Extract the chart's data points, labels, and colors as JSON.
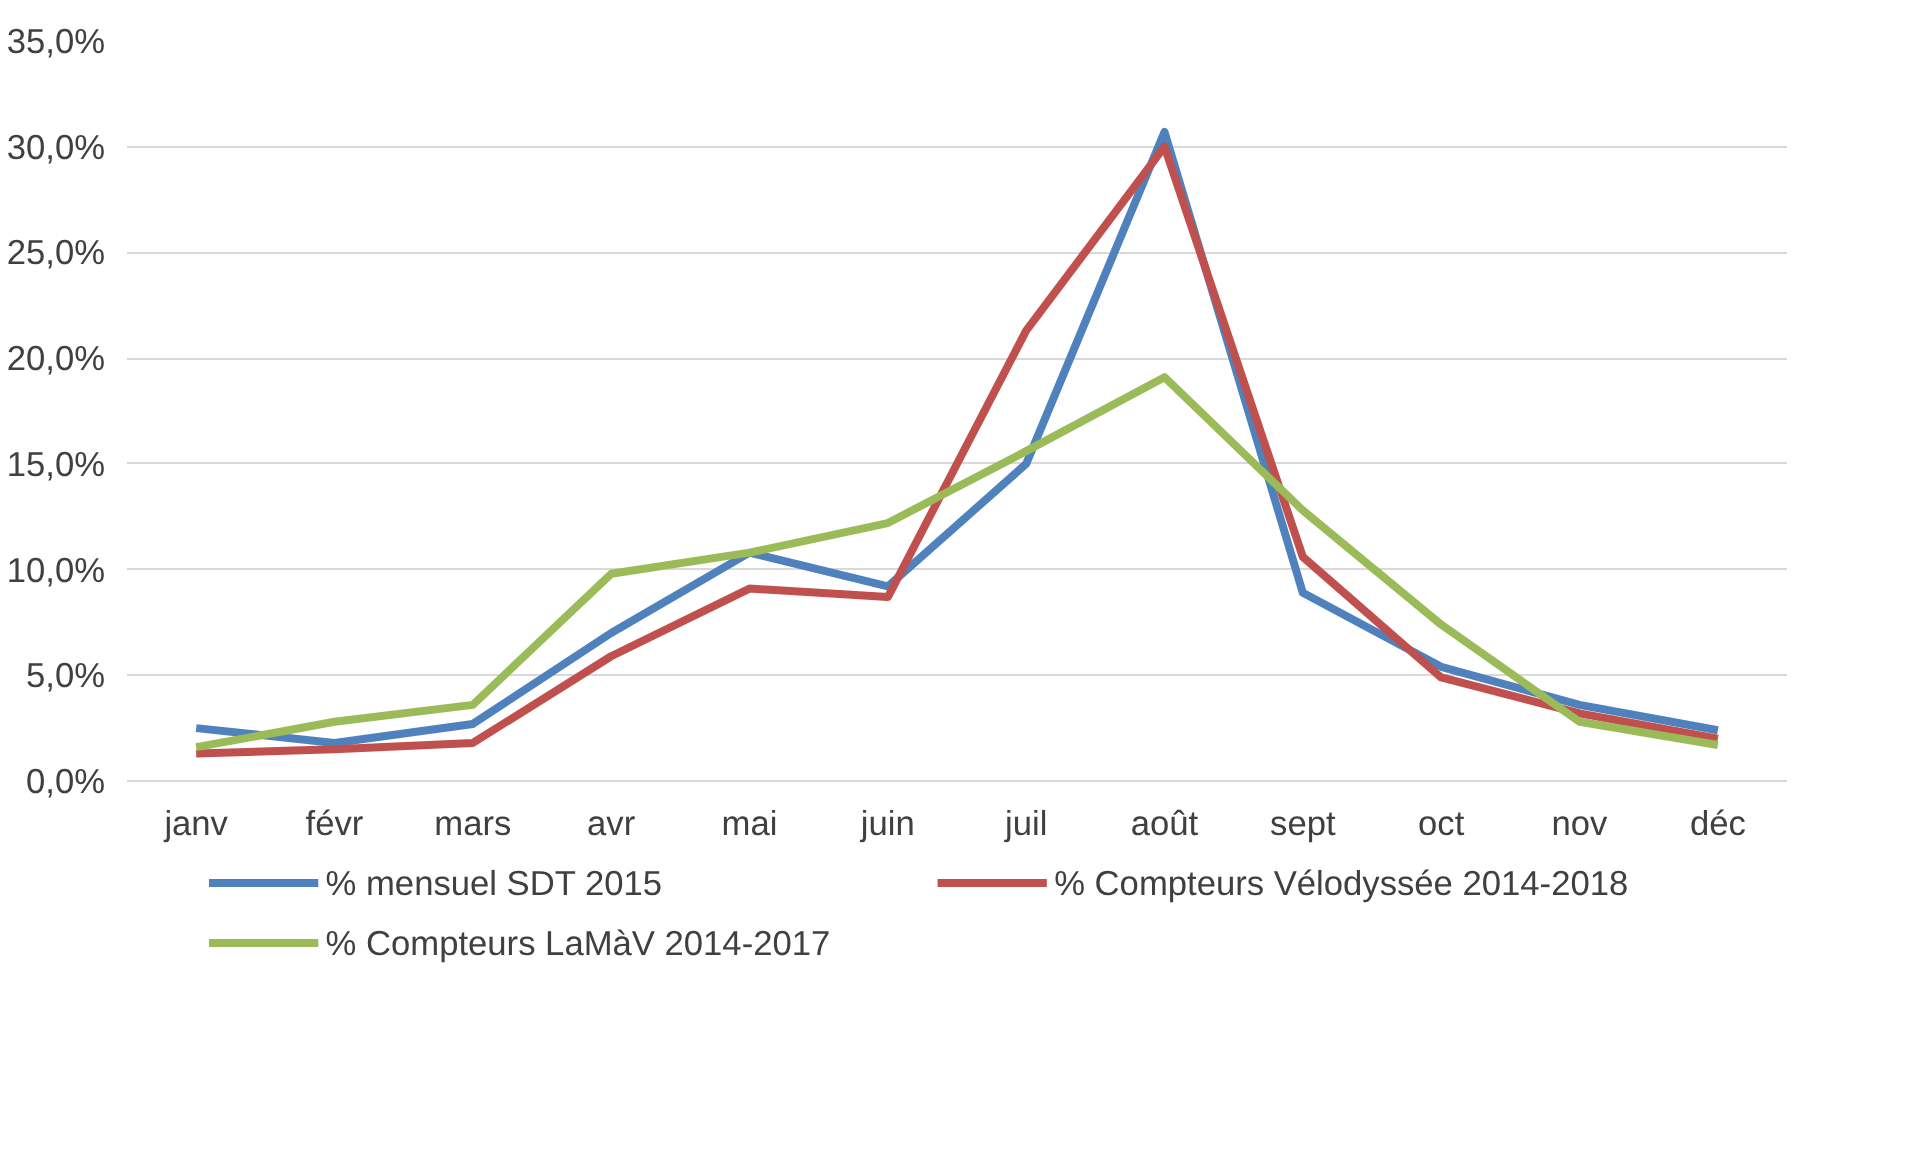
{
  "chart_data": {
    "type": "line",
    "categories": [
      "janv",
      "févr",
      "mars",
      "avr",
      "mai",
      "juin",
      "juil",
      "août",
      "sept",
      "oct",
      "nov",
      "déc"
    ],
    "series": [
      {
        "name": "% mensuel SDT 2015",
        "color": "#4f81bd",
        "values": [
          2.5,
          1.8,
          2.7,
          7.0,
          10.8,
          9.2,
          15.0,
          30.7,
          8.9,
          5.4,
          3.6,
          2.4
        ]
      },
      {
        "name": "% Compteurs Vélodyssée 2014-2018",
        "color": "#c0504d",
        "values": [
          1.3,
          1.5,
          1.8,
          5.9,
          9.1,
          8.7,
          21.3,
          30.0,
          10.6,
          4.9,
          3.2,
          2.0
        ]
      },
      {
        "name": "% Compteurs LaMàV 2014-2017",
        "color": "#9bbb59",
        "values": [
          1.6,
          2.8,
          3.6,
          9.8,
          10.8,
          12.2,
          15.6,
          19.1,
          12.8,
          7.4,
          2.8,
          1.7
        ]
      }
    ],
    "ylim": [
      0,
      35
    ],
    "yticks": [
      {
        "value": 0,
        "label": "0,0%"
      },
      {
        "value": 5,
        "label": "5,0%"
      },
      {
        "value": 10,
        "label": "10,0%"
      },
      {
        "value": 15,
        "label": "15,0%"
      },
      {
        "value": 20,
        "label": "20,0%"
      },
      {
        "value": 25,
        "label": "25,0%"
      },
      {
        "value": 30,
        "label": "30,0%"
      },
      {
        "value": 35,
        "label": "35,0%"
      }
    ],
    "grid": "y",
    "legend": "bottom",
    "marker": "none",
    "line_style": "solid"
  }
}
